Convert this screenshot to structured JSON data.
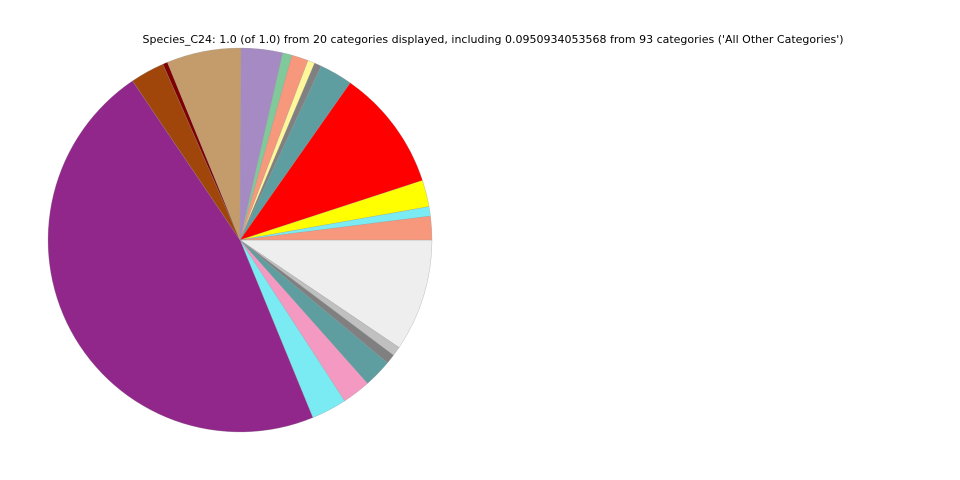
{
  "chart_data": {
    "type": "pie",
    "title": "Species_C24: 1.0 (of 1.0) from 20 categories displayed, including 0.0950934053568 from 93 categories ('All Other Categories')",
    "direction": "clockwise",
    "start": "east",
    "legend": "none",
    "slices": [
      {
        "value": 0.0951,
        "color": "#eeeeee"
      },
      {
        "value": 0.008,
        "color": "#c0c0c0"
      },
      {
        "value": 0.008,
        "color": "#808080"
      },
      {
        "value": 0.024,
        "color": "#5f9ea0"
      },
      {
        "value": 0.024,
        "color": "#f49ac2"
      },
      {
        "value": 0.03,
        "color": "#7aebf2"
      },
      {
        "value": 0.47,
        "color": "#91278b"
      },
      {
        "value": 0.029,
        "color": "#a0460a"
      },
      {
        "value": 0.004,
        "color": "#800000"
      },
      {
        "value": 0.063,
        "color": "#c49c6c"
      },
      {
        "value": 0.035,
        "color": "#a58ac4"
      },
      {
        "value": 0.008,
        "color": "#7fc99b"
      },
      {
        "value": 0.014,
        "color": "#f7987c"
      },
      {
        "value": 0.006,
        "color": "#fff799"
      },
      {
        "value": 0.006,
        "color": "#808080"
      },
      {
        "value": 0.028,
        "color": "#5f9ea0"
      },
      {
        "value": 0.103,
        "color": "#ff0000"
      },
      {
        "value": 0.0225,
        "color": "#ffff00"
      },
      {
        "value": 0.008,
        "color": "#7aebf2"
      },
      {
        "value": 0.02,
        "color": "#f7987c"
      }
    ]
  }
}
